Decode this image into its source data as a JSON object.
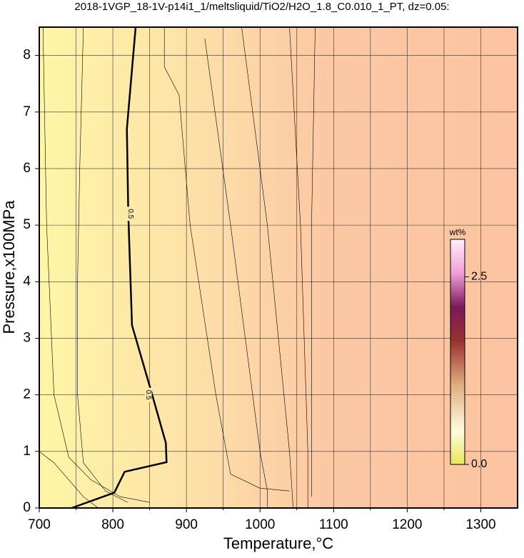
{
  "chart_data": {
    "type": "contour",
    "title": "2018-1VGP_18-1V-p14i1_1/meltsliquid/TiO2/H2O_1.8_C0.010_1_PT, dz=0.05:",
    "x_label": "Temperature,°C",
    "y_label": "Pressure,x100MPa",
    "xlim": [
      700,
      1350
    ],
    "ylim": [
      0,
      8.5
    ],
    "xticks": [
      700,
      800,
      900,
      1000,
      1100,
      1200,
      1300
    ],
    "xminor": [
      750,
      850,
      950,
      1050,
      1150,
      1250
    ],
    "yticks": [
      0,
      1,
      2,
      3,
      4,
      5,
      6,
      7,
      8
    ],
    "grid": true,
    "contours": [
      {
        "level": 0.5,
        "x": [
          744,
          802,
          816,
          873,
          872,
          850,
          826,
          821,
          819,
          831
        ],
        "y": [
          0,
          0.27,
          0.64,
          0.81,
          1.15,
          2.16,
          3.23,
          5.2,
          6.7,
          8.5
        ]
      },
      {
        "x": [
          700,
          720,
          740,
          760,
          780
        ],
        "y": [
          1.0,
          0.8,
          0.5,
          0.2,
          0
        ]
      },
      {
        "x": [
          705,
          710,
          720,
          740,
          770,
          810,
          850
        ],
        "y": [
          8.5,
          5,
          2,
          0.9,
          0.5,
          0.2,
          0.1
        ]
      },
      {
        "x": [
          760,
          755,
          752,
          752,
          760,
          790,
          820
        ],
        "y": [
          8.5,
          6,
          4,
          2,
          0.8,
          0.3,
          0.1
        ]
      },
      {
        "x": [
          870,
          870,
          890,
          905,
          940,
          960,
          1000,
          1040
        ],
        "y": [
          8.5,
          7.8,
          7.3,
          5,
          2,
          0.6,
          0.35,
          0.3
        ]
      },
      {
        "x": [
          925,
          960,
          1000,
          1010,
          1010
        ],
        "y": [
          8.3,
          5,
          1,
          0.3,
          0
        ]
      },
      {
        "x": [
          975,
          1010,
          1040,
          1045
        ],
        "y": [
          8.5,
          5,
          1,
          0
        ]
      },
      {
        "x": [
          1040,
          1055,
          1065,
          1065
        ],
        "y": [
          8.5,
          5,
          1,
          0
        ]
      },
      {
        "x": [
          1075,
          1070,
          1070,
          1070
        ],
        "y": [
          8.5,
          5,
          1,
          0.2
        ]
      }
    ],
    "colorbar": {
      "label": "wt%",
      "lim": [
        0,
        3.0
      ],
      "ticks": [
        {
          "value": 0,
          "label": "0.0"
        },
        2.5
      ]
    }
  }
}
